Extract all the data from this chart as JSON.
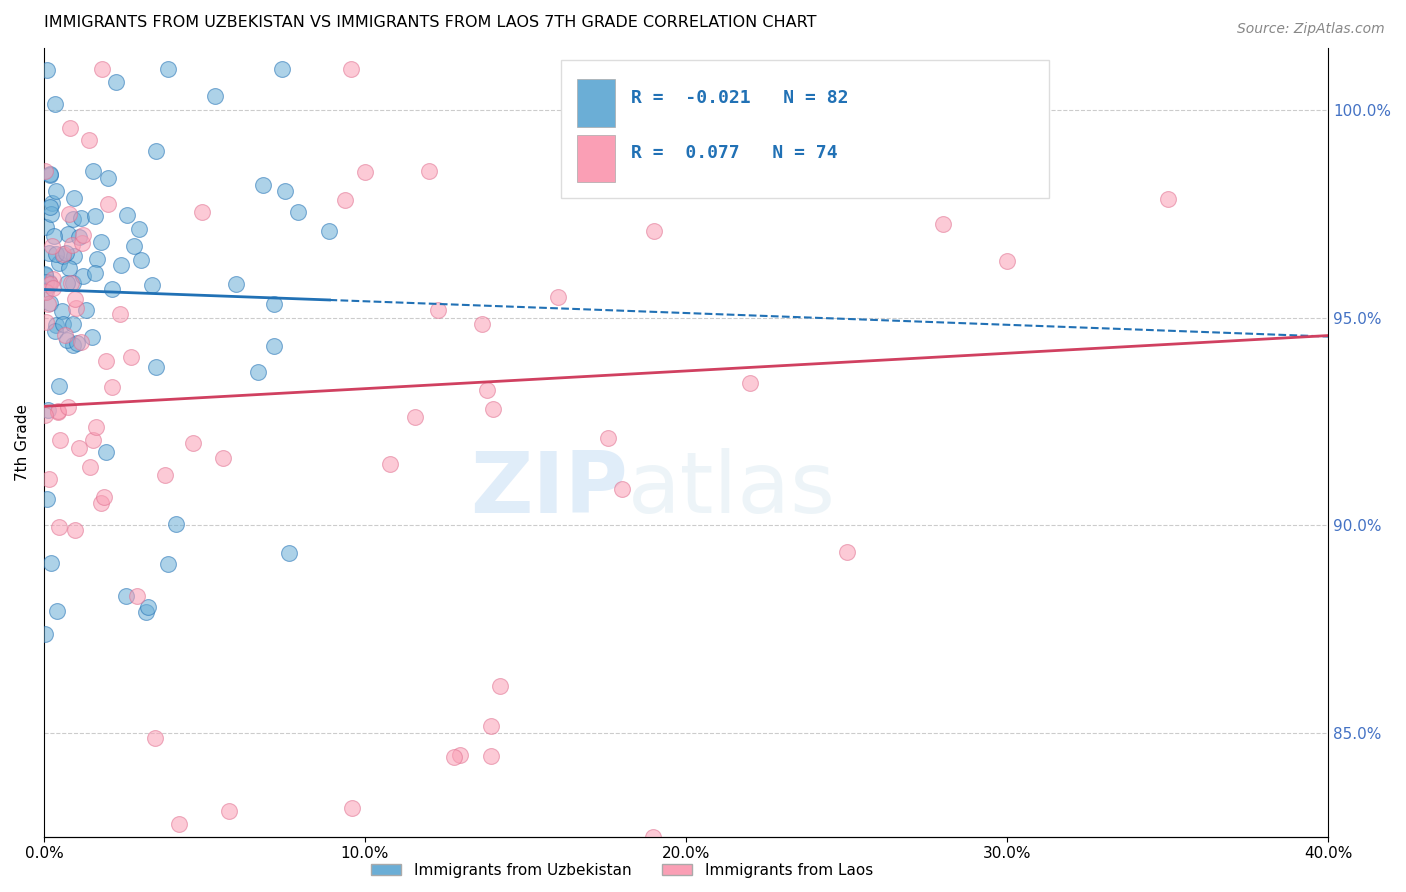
{
  "title": "IMMIGRANTS FROM UZBEKISTAN VS IMMIGRANTS FROM LAOS 7TH GRADE CORRELATION CHART",
  "source": "Source: ZipAtlas.com",
  "ylabel": "7th Grade",
  "legend_label_1": "Immigrants from Uzbekistan",
  "legend_label_2": "Immigrants from Laos",
  "R1": -0.021,
  "N1": 82,
  "R2": 0.077,
  "N2": 74,
  "color1": "#6baed6",
  "color2": "#fa9fb5",
  "color1_dark": "#2171b5",
  "xmin": 0.0,
  "xmax": 40.0,
  "ymin": 82.5,
  "ymax": 101.5,
  "right_yticks": [
    85.0,
    90.0,
    95.0,
    100.0
  ],
  "watermark_zip": "ZIP",
  "watermark_atlas": "atlas"
}
